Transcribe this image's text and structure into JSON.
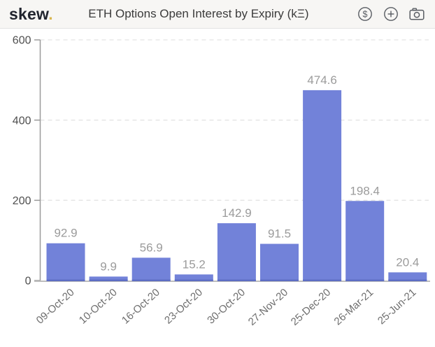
{
  "header": {
    "logo_text": "skew",
    "logo_dot": ".",
    "title": "ETH Options Open Interest by Expiry (kΞ)",
    "icons": [
      {
        "name": "dollar-circle-icon",
        "purpose": "currency-toggle"
      },
      {
        "name": "plus-circle-icon",
        "purpose": "add"
      },
      {
        "name": "camera-icon",
        "purpose": "screenshot"
      }
    ]
  },
  "colors": {
    "bar": "#7282d9",
    "bar_bottom_edge": "#5d6dc3",
    "value_label": "#9b9b9b",
    "y_tick_label": "#4f4f4f",
    "x_tick_label": "#6e6e6e",
    "axis_line": "#9a9a9a",
    "baseline": "#bdbdbd",
    "gridline": "#e4e4e4",
    "header_bg": "#f7f6f4",
    "logo_dot": "#d9b64f",
    "icon_stroke": "#595d63"
  },
  "chart_data": {
    "type": "bar",
    "title": "ETH Options Open Interest by Expiry (kΞ)",
    "unit": "kΞ",
    "categories": [
      "09-Oct-20",
      "10-Oct-20",
      "16-Oct-20",
      "23-Oct-20",
      "30-Oct-20",
      "27-Nov-20",
      "25-Dec-20",
      "26-Mar-21",
      "25-Jun-21"
    ],
    "values": [
      92.9,
      9.9,
      56.9,
      15.2,
      142.9,
      91.5,
      474.6,
      198.4,
      20.4
    ],
    "value_labels": [
      "92.9",
      "9.9",
      "56.9",
      "15.2",
      "142.9",
      "91.5",
      "474.6",
      "198.4",
      "20.4"
    ],
    "xlabel": "",
    "ylabel": "",
    "ylim": [
      0,
      600
    ],
    "yticks": [
      0,
      200,
      400,
      600
    ],
    "grid": "horizontal-dashed",
    "legend": "none"
  }
}
